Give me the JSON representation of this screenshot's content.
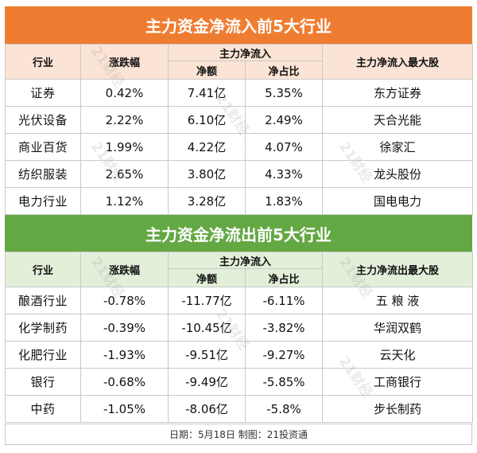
{
  "inflow": {
    "title": "主力资金净流入前5大行业",
    "headers": {
      "industry": "行业",
      "change": "涨跌幅",
      "group": "主力净流入",
      "net_amount": "净额",
      "net_ratio": "净占比",
      "top_stock": "主力净流入最大股"
    },
    "rows": [
      {
        "industry": "证券",
        "change": "0.42%",
        "net_amount": "7.41亿",
        "net_ratio": "5.35%",
        "top_stock": "东方证券"
      },
      {
        "industry": "光伏设备",
        "change": "2.22%",
        "net_amount": "6.10亿",
        "net_ratio": "2.49%",
        "top_stock": "天合光能"
      },
      {
        "industry": "商业百货",
        "change": "1.99%",
        "net_amount": "4.22亿",
        "net_ratio": "4.07%",
        "top_stock": "徐家汇"
      },
      {
        "industry": "纺织服装",
        "change": "2.65%",
        "net_amount": "3.80亿",
        "net_ratio": "4.33%",
        "top_stock": "龙头股份"
      },
      {
        "industry": "电力行业",
        "change": "1.12%",
        "net_amount": "3.28亿",
        "net_ratio": "1.83%",
        "top_stock": "国电电力"
      }
    ]
  },
  "outflow": {
    "title": "主力资金净流出前5大行业",
    "headers": {
      "industry": "行业",
      "change": "涨跌幅",
      "group": "主力净流入",
      "net_amount": "净额",
      "net_ratio": "净占比",
      "top_stock": "主力净流出最大股"
    },
    "rows": [
      {
        "industry": "酿酒行业",
        "change": "-0.78%",
        "net_amount": "-11.77亿",
        "net_ratio": "-6.11%",
        "top_stock": "五 粮 液"
      },
      {
        "industry": "化学制药",
        "change": "-0.39%",
        "net_amount": "-10.45亿",
        "net_ratio": "-3.82%",
        "top_stock": "华润双鹤"
      },
      {
        "industry": "化肥行业",
        "change": "-1.93%",
        "net_amount": "-9.51亿",
        "net_ratio": "-9.27%",
        "top_stock": "云天化"
      },
      {
        "industry": "银行",
        "change": "-0.68%",
        "net_amount": "-9.49亿",
        "net_ratio": "-5.85%",
        "top_stock": "工商银行"
      },
      {
        "industry": "中药",
        "change": "-1.05%",
        "net_amount": "-8.06亿",
        "net_ratio": "-5.8%",
        "top_stock": "步长制药"
      }
    ]
  },
  "footer": {
    "text": "日期：5月18日 制图：21投资通"
  },
  "watermark": {
    "text": "21财经"
  },
  "colors": {
    "inflow_banner": "#ef7d31",
    "inflow_header": "#fbe4d5",
    "outflow_banner": "#64a844",
    "outflow_header": "#e2efd9"
  }
}
